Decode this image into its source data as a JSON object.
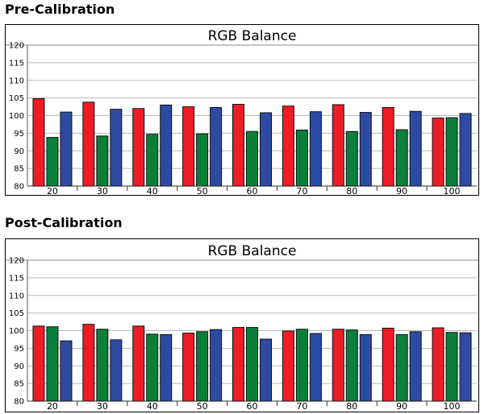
{
  "sections": [
    {
      "heading": "Pre-Calibration"
    },
    {
      "heading": "Post-Calibration"
    }
  ],
  "colors": {
    "red": "#ee1c25",
    "green": "#0a7f3a",
    "blue": "#2e4ba3",
    "grid": "#b8b8b8"
  },
  "chart_data": [
    {
      "type": "bar",
      "title": "RGB Balance",
      "categories": [
        "20",
        "30",
        "40",
        "50",
        "60",
        "70",
        "80",
        "90",
        "100"
      ],
      "series": [
        {
          "values": [
            104.8,
            103.8,
            102.0,
            102.5,
            103.2,
            102.7,
            103.1,
            102.3,
            99.3
          ]
        },
        {
          "values": [
            93.8,
            94.2,
            94.7,
            94.8,
            95.5,
            95.9,
            95.5,
            96.0,
            99.4
          ]
        },
        {
          "values": [
            101.0,
            101.8,
            103.0,
            102.3,
            100.8,
            101.1,
            100.9,
            101.2,
            100.6
          ]
        }
      ],
      "yticks": [
        80,
        85,
        90,
        95,
        100,
        105,
        110,
        115,
        120
      ],
      "ylim": [
        80,
        120
      ],
      "grid": true
    },
    {
      "type": "bar",
      "title": "RGB Balance",
      "categories": [
        "20",
        "30",
        "40",
        "50",
        "60",
        "70",
        "80",
        "90",
        "100"
      ],
      "series": [
        {
          "values": [
            101.3,
            101.8,
            101.3,
            99.3,
            100.9,
            99.9,
            100.4,
            100.7,
            100.8
          ]
        },
        {
          "values": [
            101.1,
            100.4,
            99.0,
            99.7,
            100.9,
            100.4,
            100.2,
            98.9,
            99.5
          ]
        },
        {
          "values": [
            97.1,
            97.4,
            98.9,
            100.3,
            97.6,
            99.2,
            98.9,
            99.7,
            99.4
          ]
        }
      ],
      "yticks": [
        80,
        85,
        90,
        95,
        100,
        105,
        110,
        115,
        120
      ],
      "ylim": [
        80,
        120
      ],
      "grid": true
    }
  ]
}
